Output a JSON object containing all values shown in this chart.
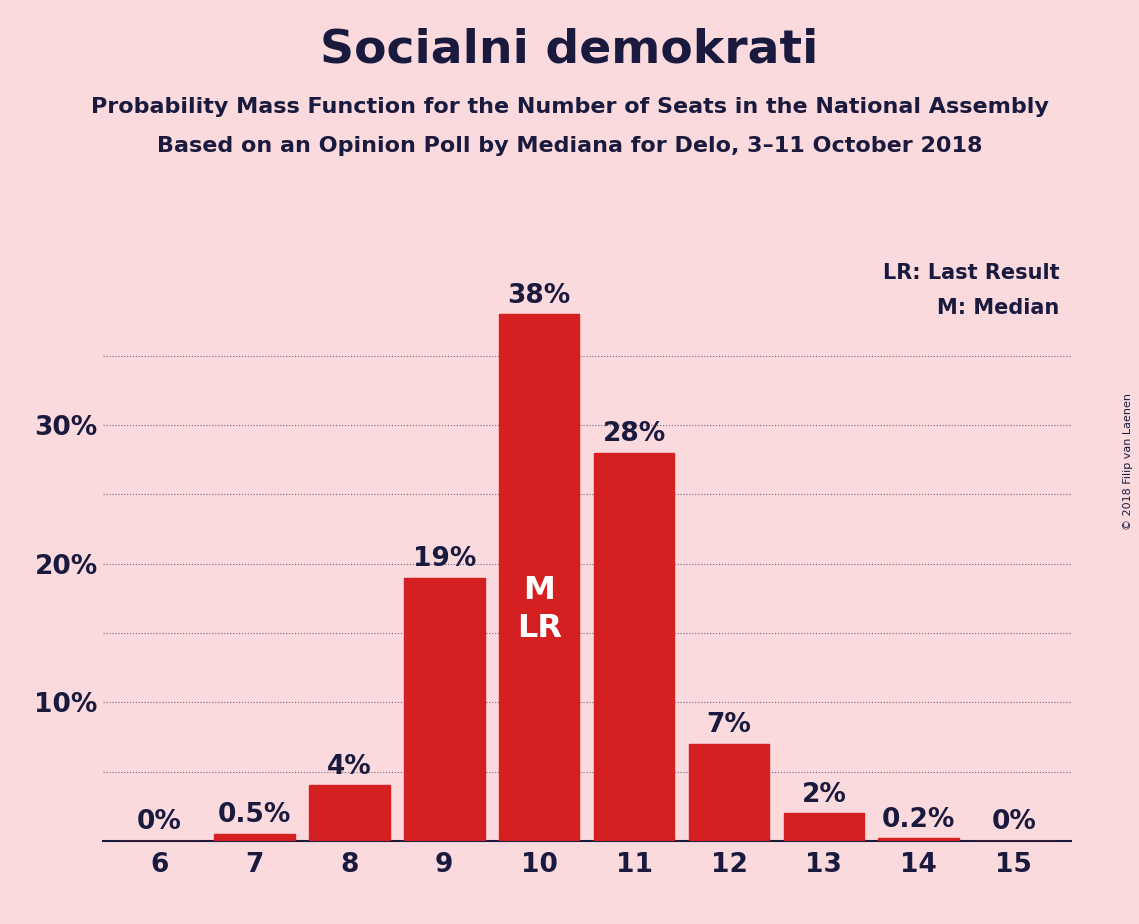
{
  "title": "Socialni demokrati",
  "subtitle1": "Probability Mass Function for the Number of Seats in the National Assembly",
  "subtitle2": "Based on an Opinion Poll by Mediana for Delo, 3–11 October 2018",
  "copyright": "© 2018 Filip van Laenen",
  "categories": [
    6,
    7,
    8,
    9,
    10,
    11,
    12,
    13,
    14,
    15
  ],
  "values": [
    0.0,
    0.5,
    4.0,
    19.0,
    38.0,
    28.0,
    7.0,
    2.0,
    0.2,
    0.0
  ],
  "bar_color": "#d42020",
  "background_color": "#fadadd",
  "text_color": "#1a1a3e",
  "title_fontsize": 34,
  "subtitle_fontsize": 16,
  "label_fontsize": 19,
  "tick_fontsize": 19,
  "yticks": [
    0,
    10,
    20,
    30
  ],
  "ytick_labels": [
    "",
    "10%",
    "20%",
    "30%"
  ],
  "dotted_gridlines": [
    5,
    10,
    15,
    20,
    25,
    30,
    35
  ],
  "median_bar": 10,
  "legend_lr": "LR: Last Result",
  "legend_m": "M: Median",
  "ylim": [
    0,
    42
  ]
}
